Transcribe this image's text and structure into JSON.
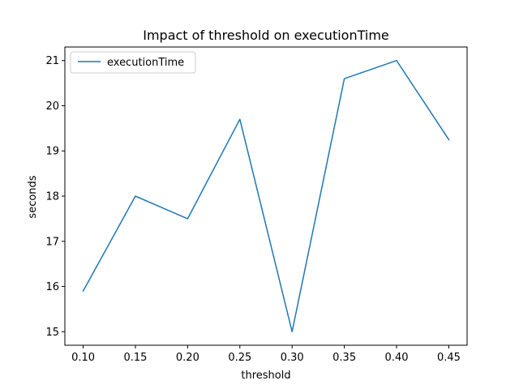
{
  "chart_data": {
    "type": "line",
    "title": "Impact of threshold on executionTime",
    "xlabel": "threshold",
    "ylabel": "seconds",
    "x": [
      0.1,
      0.15,
      0.2,
      0.25,
      0.3,
      0.35,
      0.4,
      0.45
    ],
    "x_tick_labels": [
      "0.10",
      "0.15",
      "0.20",
      "0.25",
      "0.30",
      "0.35",
      "0.40",
      "0.45"
    ],
    "y_ticks": [
      15,
      16,
      17,
      18,
      19,
      20,
      21
    ],
    "y_tick_labels": [
      "15",
      "16",
      "17",
      "18",
      "19",
      "20",
      "21"
    ],
    "xlim": [
      0.0825,
      0.4675
    ],
    "ylim": [
      14.7,
      21.3
    ],
    "grid": false,
    "legend_position": "upper-left",
    "series": [
      {
        "name": "executionTime",
        "color": "#1f77b4",
        "values": [
          15.9,
          18.0,
          17.5,
          19.7,
          15.0,
          20.6,
          21.0,
          19.25
        ]
      }
    ]
  }
}
